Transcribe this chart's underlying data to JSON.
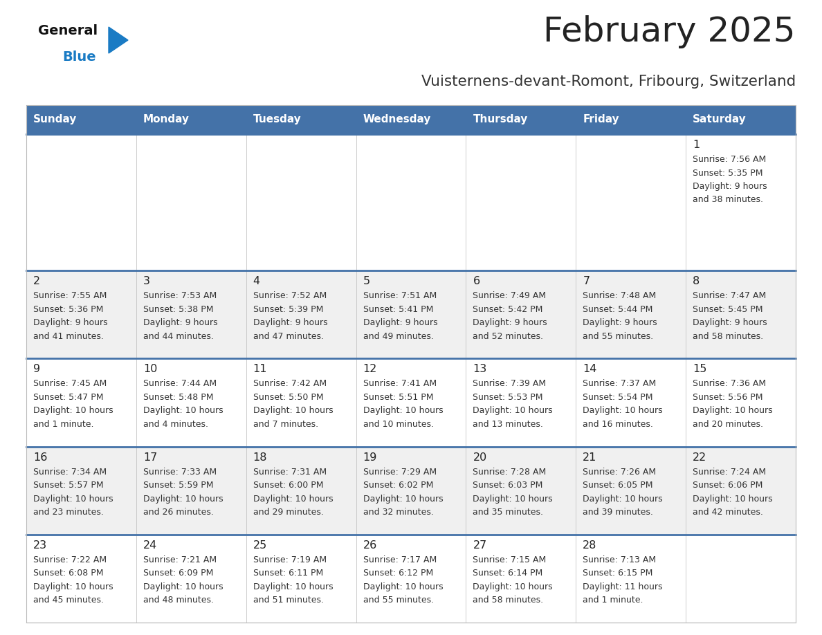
{
  "title": "February 2025",
  "subtitle": "Vuisternens-devant-Romont, Fribourg, Switzerland",
  "days_of_week": [
    "Sunday",
    "Monday",
    "Tuesday",
    "Wednesday",
    "Thursday",
    "Friday",
    "Saturday"
  ],
  "header_bg": "#4472a8",
  "header_text": "#ffffff",
  "row_bg_odd": "#ffffff",
  "row_bg_even": "#f0f0f0",
  "separator_color": "#4472a8",
  "text_color": "#333333",
  "day_num_color": "#222222",
  "title_color": "#222222",
  "subtitle_color": "#333333",
  "logo_black": "#111111",
  "logo_blue": "#1a7bc4",
  "calendar": [
    [
      null,
      null,
      null,
      null,
      null,
      null,
      {
        "day": 1,
        "sunrise": "7:56 AM",
        "sunset": "5:35 PM",
        "daylight": "9 hours and 38 minutes."
      }
    ],
    [
      {
        "day": 2,
        "sunrise": "7:55 AM",
        "sunset": "5:36 PM",
        "daylight": "9 hours and 41 minutes."
      },
      {
        "day": 3,
        "sunrise": "7:53 AM",
        "sunset": "5:38 PM",
        "daylight": "9 hours and 44 minutes."
      },
      {
        "day": 4,
        "sunrise": "7:52 AM",
        "sunset": "5:39 PM",
        "daylight": "9 hours and 47 minutes."
      },
      {
        "day": 5,
        "sunrise": "7:51 AM",
        "sunset": "5:41 PM",
        "daylight": "9 hours and 49 minutes."
      },
      {
        "day": 6,
        "sunrise": "7:49 AM",
        "sunset": "5:42 PM",
        "daylight": "9 hours and 52 minutes."
      },
      {
        "day": 7,
        "sunrise": "7:48 AM",
        "sunset": "5:44 PM",
        "daylight": "9 hours and 55 minutes."
      },
      {
        "day": 8,
        "sunrise": "7:47 AM",
        "sunset": "5:45 PM",
        "daylight": "9 hours and 58 minutes."
      }
    ],
    [
      {
        "day": 9,
        "sunrise": "7:45 AM",
        "sunset": "5:47 PM",
        "daylight": "10 hours and 1 minute."
      },
      {
        "day": 10,
        "sunrise": "7:44 AM",
        "sunset": "5:48 PM",
        "daylight": "10 hours and 4 minutes."
      },
      {
        "day": 11,
        "sunrise": "7:42 AM",
        "sunset": "5:50 PM",
        "daylight": "10 hours and 7 minutes."
      },
      {
        "day": 12,
        "sunrise": "7:41 AM",
        "sunset": "5:51 PM",
        "daylight": "10 hours and 10 minutes."
      },
      {
        "day": 13,
        "sunrise": "7:39 AM",
        "sunset": "5:53 PM",
        "daylight": "10 hours and 13 minutes."
      },
      {
        "day": 14,
        "sunrise": "7:37 AM",
        "sunset": "5:54 PM",
        "daylight": "10 hours and 16 minutes."
      },
      {
        "day": 15,
        "sunrise": "7:36 AM",
        "sunset": "5:56 PM",
        "daylight": "10 hours and 20 minutes."
      }
    ],
    [
      {
        "day": 16,
        "sunrise": "7:34 AM",
        "sunset": "5:57 PM",
        "daylight": "10 hours and 23 minutes."
      },
      {
        "day": 17,
        "sunrise": "7:33 AM",
        "sunset": "5:59 PM",
        "daylight": "10 hours and 26 minutes."
      },
      {
        "day": 18,
        "sunrise": "7:31 AM",
        "sunset": "6:00 PM",
        "daylight": "10 hours and 29 minutes."
      },
      {
        "day": 19,
        "sunrise": "7:29 AM",
        "sunset": "6:02 PM",
        "daylight": "10 hours and 32 minutes."
      },
      {
        "day": 20,
        "sunrise": "7:28 AM",
        "sunset": "6:03 PM",
        "daylight": "10 hours and 35 minutes."
      },
      {
        "day": 21,
        "sunrise": "7:26 AM",
        "sunset": "6:05 PM",
        "daylight": "10 hours and 39 minutes."
      },
      {
        "day": 22,
        "sunrise": "7:24 AM",
        "sunset": "6:06 PM",
        "daylight": "10 hours and 42 minutes."
      }
    ],
    [
      {
        "day": 23,
        "sunrise": "7:22 AM",
        "sunset": "6:08 PM",
        "daylight": "10 hours and 45 minutes."
      },
      {
        "day": 24,
        "sunrise": "7:21 AM",
        "sunset": "6:09 PM",
        "daylight": "10 hours and 48 minutes."
      },
      {
        "day": 25,
        "sunrise": "7:19 AM",
        "sunset": "6:11 PM",
        "daylight": "10 hours and 51 minutes."
      },
      {
        "day": 26,
        "sunrise": "7:17 AM",
        "sunset": "6:12 PM",
        "daylight": "10 hours and 55 minutes."
      },
      {
        "day": 27,
        "sunrise": "7:15 AM",
        "sunset": "6:14 PM",
        "daylight": "10 hours and 58 minutes."
      },
      {
        "day": 28,
        "sunrise": "7:13 AM",
        "sunset": "6:15 PM",
        "daylight": "11 hours and 1 minute."
      },
      null
    ]
  ]
}
